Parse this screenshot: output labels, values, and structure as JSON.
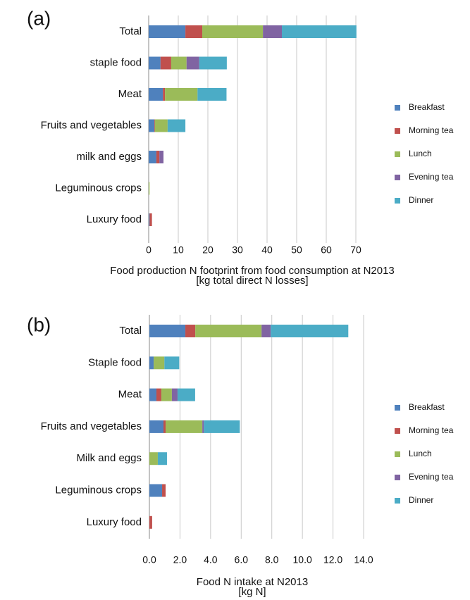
{
  "chart_data": [
    {
      "type": "bar",
      "orientation": "horizontal",
      "stacked": true,
      "label": "(a)",
      "categories": [
        "Total",
        "staple food",
        "Meat",
        "Fruits and vegetables",
        "milk and eggs",
        "Leguminous crops",
        "Luxury food"
      ],
      "series": [
        {
          "name": "Breakfast",
          "color": "#4f81bd",
          "values": [
            12.4,
            4.0,
            4.8,
            1.9,
            2.6,
            0,
            0.3
          ]
        },
        {
          "name": "Morning tea",
          "color": "#c0504d",
          "values": [
            5.7,
            3.6,
            0.7,
            0.2,
            1.0,
            0,
            0.8
          ]
        },
        {
          "name": "Lunch",
          "color": "#9bbb59",
          "values": [
            20.5,
            5.2,
            11.0,
            4.3,
            0,
            0.3,
            0
          ]
        },
        {
          "name": "Evening tea",
          "color": "#8064a2",
          "values": [
            6.4,
            4.3,
            0,
            0,
            1.4,
            0,
            0
          ]
        },
        {
          "name": "Dinner",
          "color": "#4bacc6",
          "values": [
            25.2,
            9.3,
            9.8,
            6.0,
            0,
            0,
            0
          ]
        }
      ],
      "xlim": [
        0,
        70
      ],
      "xticks": [
        0,
        10,
        20,
        30,
        40,
        50,
        60,
        70
      ],
      "grid": true,
      "legend": "right",
      "xlabel": [
        "Food production N footprint from food consumption at N2013",
        "[kg total direct N losses]"
      ]
    },
    {
      "type": "bar",
      "orientation": "horizontal",
      "stacked": true,
      "label": "(b)",
      "categories": [
        "Total",
        "Staple food",
        "Meat",
        "Fruits and vegetables",
        "Milk and eggs",
        "Leguminous crops",
        "Luxury food"
      ],
      "series": [
        {
          "name": "Breakfast",
          "color": "#4f81bd",
          "values": [
            2.35,
            0.28,
            0.46,
            0.92,
            0,
            0.83,
            0
          ]
        },
        {
          "name": "Morning tea",
          "color": "#c0504d",
          "values": [
            0.65,
            0,
            0.32,
            0.14,
            0,
            0.23,
            0.18
          ]
        },
        {
          "name": "Lunch",
          "color": "#9bbb59",
          "values": [
            4.33,
            0.7,
            0.69,
            2.4,
            0.55,
            0,
            0
          ]
        },
        {
          "name": "Evening tea",
          "color": "#8064a2",
          "values": [
            0.6,
            0,
            0.37,
            0.1,
            0,
            0,
            0
          ]
        },
        {
          "name": "Dinner",
          "color": "#4bacc6",
          "values": [
            5.07,
            0.97,
            1.15,
            2.35,
            0.6,
            0,
            0
          ]
        }
      ],
      "xlim": [
        0,
        14
      ],
      "xticks": [
        {
          "value": 0,
          "label": "0.0"
        },
        {
          "value": 2,
          "label": "2.0"
        },
        {
          "value": 4,
          "label": "4.0"
        },
        {
          "value": 6,
          "label": "6.0"
        },
        {
          "value": 8,
          "label": "8.0"
        },
        {
          "value": 10,
          "label": "10.0"
        },
        {
          "value": 12,
          "label": "12.0"
        },
        {
          "value": 14,
          "label": "14.0"
        }
      ],
      "grid": true,
      "legend": "right",
      "xlabel": [
        "Food N intake at N2013",
        "[kg N]"
      ]
    }
  ]
}
